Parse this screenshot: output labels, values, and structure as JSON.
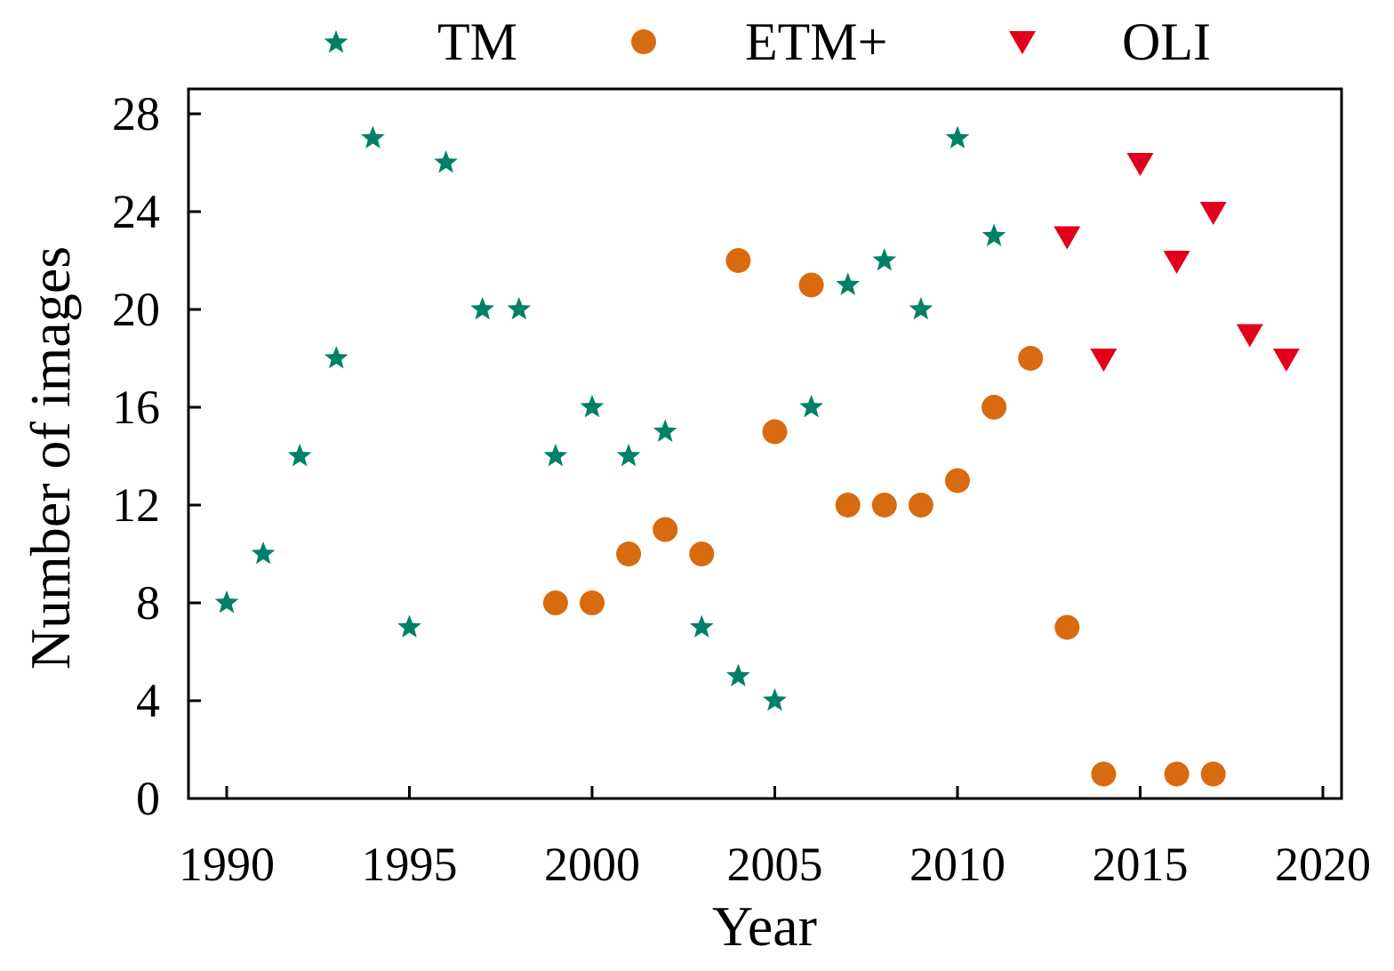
{
  "chart_data": {
    "type": "scatter",
    "title": "",
    "xlabel": "Year",
    "ylabel": "Number of images",
    "xlim": [
      1989,
      2021
    ],
    "ylim": [
      0,
      28
    ],
    "x_ticks": [
      "1990",
      "1995",
      "2000",
      "2005",
      "2010",
      "2015",
      "2020"
    ],
    "y_ticks": [
      "0",
      "4",
      "8",
      "12",
      "16",
      "20",
      "24",
      "28"
    ],
    "grid": false,
    "legend_position": "top",
    "series": [
      {
        "name": "TM",
        "marker": "star",
        "color": "#008066",
        "x": [
          1990,
          1991,
          1992,
          1993,
          1994,
          1995,
          1996,
          1997,
          1998,
          1999,
          2000,
          2001,
          2002,
          2003,
          2004,
          2005,
          2006,
          2007,
          2008,
          2009,
          2010,
          2011
        ],
        "y": [
          8,
          10,
          14,
          18,
          27,
          7,
          26,
          20,
          20,
          14,
          16,
          14,
          15,
          7,
          5,
          4,
          16,
          21,
          22,
          20,
          27,
          23
        ]
      },
      {
        "name": "ETM+",
        "marker": "circle",
        "color": "#D86A10",
        "x": [
          1999,
          2000,
          2001,
          2002,
          2003,
          2004,
          2005,
          2006,
          2007,
          2008,
          2009,
          2010,
          2011,
          2012,
          2013,
          2014,
          2016,
          2017
        ],
        "y": [
          8,
          8,
          10,
          11,
          10,
          22,
          15,
          21,
          12,
          12,
          12,
          13,
          16,
          18,
          7,
          1,
          1,
          1
        ]
      },
      {
        "name": "OLI",
        "marker": "triangle-down",
        "color": "#E0001C",
        "x": [
          2013,
          2014,
          2015,
          2016,
          2017,
          2018,
          2019
        ],
        "y": [
          23,
          18,
          26,
          22,
          24,
          19,
          18
        ]
      }
    ]
  }
}
